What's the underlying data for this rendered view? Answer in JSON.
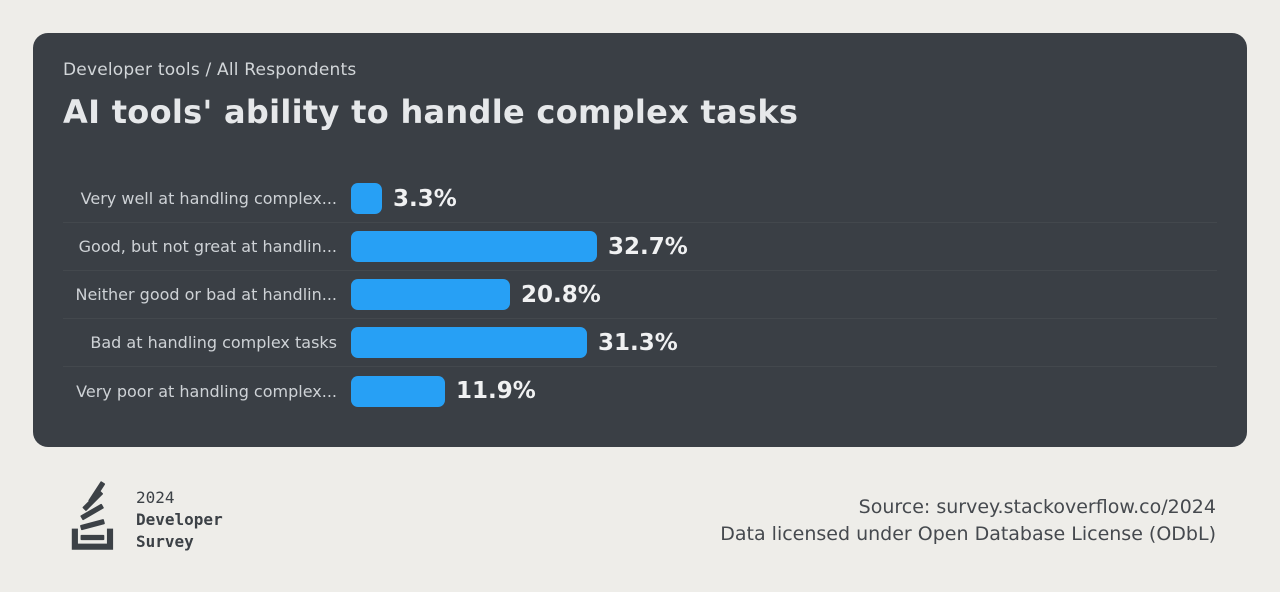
{
  "header": {
    "breadcrumb": "Developer tools / All Respondents",
    "title": "AI tools' ability to handle complex tasks"
  },
  "chart_data": {
    "type": "bar",
    "orientation": "horizontal",
    "title": "AI tools' ability to handle complex tasks",
    "categories": [
      "Very well at handling complex...",
      "Good, but not great at handlin...",
      "Neither good or bad at handlin...",
      "Bad at handling complex tasks",
      "Very poor at handling complex..."
    ],
    "values": [
      3.3,
      32.7,
      20.8,
      31.3,
      11.9
    ],
    "value_labels": [
      "3.3%",
      "32.7%",
      "20.8%",
      "31.3%",
      "11.9%"
    ],
    "unit": "percent",
    "bar_color": "#27a0f5",
    "legend": "none",
    "grid": "horizontal row separators only",
    "value_label_position": "end-of-bar"
  },
  "footer": {
    "logo": {
      "icon": "stackoverflow-fanned-stack",
      "line1": "2024",
      "line2": "Developer",
      "line3": "Survey"
    },
    "source_line1": "Source: survey.stackoverflow.co/2024",
    "source_line2": "Data licensed under Open Database License (ODbL)"
  },
  "colors": {
    "page_background": "#eeede9",
    "card_background": "#3a3f45",
    "bar_blue": "#27a0f5",
    "row_separator": "#43484d",
    "row_label_text": "#ced2d6",
    "value_text": "#f0f1f2",
    "breadcrumb_text": "#d2d6d9",
    "title_text": "#e6e8ea",
    "footer_text": "#45494e",
    "logo_color": "#3c4146"
  }
}
